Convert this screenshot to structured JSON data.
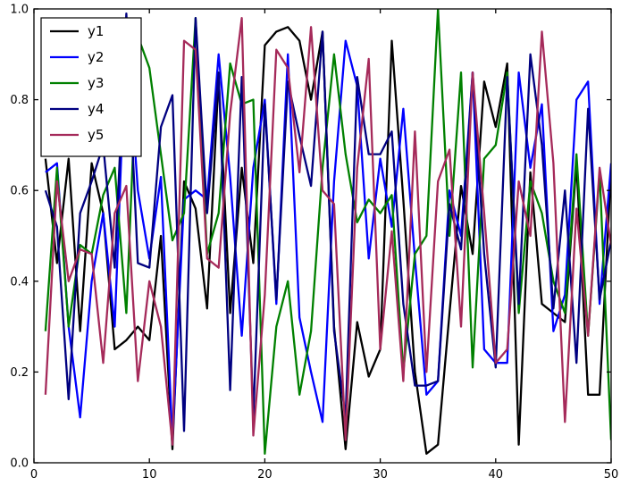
{
  "figure": {
    "background": "#ffffff",
    "frame_color": "#000000",
    "line_width": 2.3
  },
  "chart_data": {
    "type": "line",
    "title": "",
    "xlabel": "",
    "ylabel": "",
    "xlim": [
      0,
      50
    ],
    "ylim": [
      0.0,
      1.0
    ],
    "grid": false,
    "legend_position": "upper-left",
    "xticks": [
      0,
      10,
      20,
      30,
      40,
      50
    ],
    "xtick_labels": [
      "0",
      "10",
      "20",
      "30",
      "40",
      "50"
    ],
    "yticks": [
      0.0,
      0.2,
      0.4,
      0.6,
      0.8,
      1.0
    ],
    "ytick_labels": [
      "0.0",
      "0.2",
      "0.4",
      "0.6",
      "0.8",
      "1.0"
    ],
    "x": [
      1,
      2,
      3,
      4,
      5,
      6,
      7,
      8,
      9,
      10,
      11,
      12,
      13,
      14,
      15,
      16,
      17,
      18,
      19,
      20,
      21,
      22,
      23,
      24,
      25,
      26,
      27,
      28,
      29,
      30,
      31,
      32,
      33,
      34,
      35,
      36,
      37,
      38,
      39,
      40,
      41,
      42,
      43,
      44,
      45,
      46,
      47,
      48,
      49,
      50
    ],
    "series": [
      {
        "name": "y1",
        "color": "#000000",
        "values": [
          0.67,
          0.44,
          0.67,
          0.29,
          0.66,
          0.55,
          0.25,
          0.27,
          0.3,
          0.27,
          0.5,
          0.03,
          0.62,
          0.56,
          0.34,
          0.85,
          0.33,
          0.65,
          0.44,
          0.92,
          0.95,
          0.96,
          0.93,
          0.8,
          0.95,
          0.3,
          0.03,
          0.31,
          0.19,
          0.25,
          0.93,
          0.58,
          0.2,
          0.02,
          0.04,
          0.33,
          0.61,
          0.46,
          0.84,
          0.74,
          0.88,
          0.04,
          0.64,
          0.35,
          0.33,
          0.31,
          0.66,
          0.15,
          0.15,
          0.65
        ]
      },
      {
        "name": "y2",
        "color": "#0000ff",
        "values": [
          0.64,
          0.66,
          0.3,
          0.1,
          0.4,
          0.55,
          0.3,
          0.97,
          0.6,
          0.45,
          0.63,
          0.05,
          0.58,
          0.6,
          0.58,
          0.9,
          0.63,
          0.28,
          0.65,
          0.8,
          0.35,
          0.9,
          0.32,
          0.2,
          0.09,
          0.62,
          0.93,
          0.83,
          0.45,
          0.67,
          0.52,
          0.78,
          0.45,
          0.15,
          0.18,
          0.6,
          0.5,
          0.86,
          0.25,
          0.22,
          0.22,
          0.86,
          0.65,
          0.79,
          0.29,
          0.37,
          0.8,
          0.84,
          0.35,
          0.66
        ]
      },
      {
        "name": "y3",
        "color": "#008000",
        "values": [
          0.29,
          0.65,
          0.3,
          0.48,
          0.46,
          0.59,
          0.65,
          0.33,
          0.94,
          0.87,
          0.68,
          0.49,
          0.55,
          0.98,
          0.46,
          0.55,
          0.88,
          0.79,
          0.8,
          0.02,
          0.3,
          0.4,
          0.15,
          0.29,
          0.65,
          0.9,
          0.68,
          0.53,
          0.58,
          0.55,
          0.59,
          0.2,
          0.46,
          0.5,
          1.0,
          0.5,
          0.86,
          0.21,
          0.67,
          0.7,
          0.86,
          0.33,
          0.62,
          0.55,
          0.4,
          0.33,
          0.68,
          0.28,
          0.64,
          0.05
        ]
      },
      {
        "name": "y4",
        "color": "#000080",
        "values": [
          0.6,
          0.52,
          0.14,
          0.55,
          0.62,
          0.7,
          0.43,
          0.99,
          0.44,
          0.43,
          0.74,
          0.81,
          0.07,
          0.98,
          0.55,
          0.86,
          0.16,
          0.85,
          0.1,
          0.79,
          0.36,
          0.84,
          0.72,
          0.61,
          0.95,
          0.29,
          0.1,
          0.85,
          0.68,
          0.68,
          0.73,
          0.35,
          0.17,
          0.17,
          0.18,
          0.57,
          0.47,
          0.86,
          0.46,
          0.21,
          0.85,
          0.35,
          0.9,
          0.7,
          0.34,
          0.6,
          0.22,
          0.78,
          0.36,
          0.49
        ]
      },
      {
        "name": "y5",
        "color": "#a52a5a",
        "values": [
          0.15,
          0.62,
          0.4,
          0.47,
          0.46,
          0.22,
          0.55,
          0.61,
          0.18,
          0.4,
          0.3,
          0.04,
          0.93,
          0.91,
          0.45,
          0.43,
          0.77,
          0.98,
          0.06,
          0.37,
          0.91,
          0.87,
          0.64,
          0.96,
          0.6,
          0.57,
          0.05,
          0.65,
          0.89,
          0.25,
          0.51,
          0.18,
          0.73,
          0.2,
          0.62,
          0.69,
          0.3,
          0.86,
          0.55,
          0.22,
          0.25,
          0.62,
          0.5,
          0.95,
          0.66,
          0.09,
          0.56,
          0.28,
          0.65,
          0.48
        ]
      }
    ]
  }
}
